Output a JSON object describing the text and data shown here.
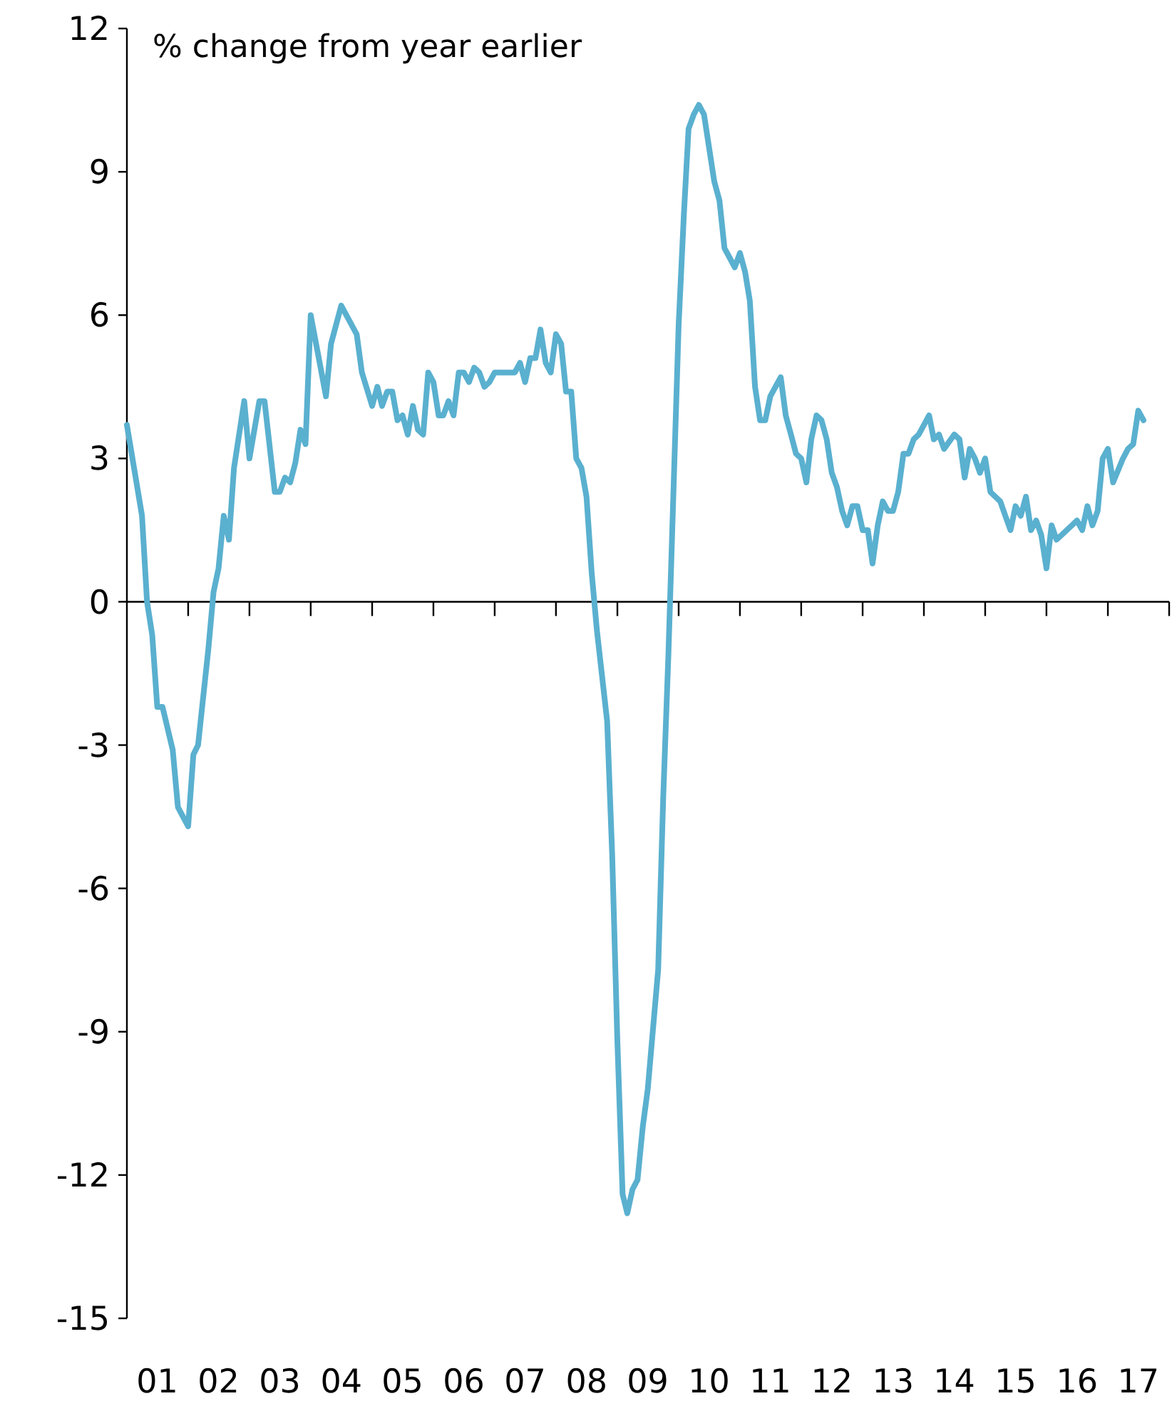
{
  "chart_data": {
    "type": "line",
    "ylabel": "% change from year earlier",
    "color": "#5ab0cf",
    "x": [
      "2001-01",
      "2001-04",
      "2001-05",
      "2001-06",
      "2001-07",
      "2001-08",
      "2001-10",
      "2001-11",
      "2002-01",
      "2002-02",
      "2002-03",
      "2002-05",
      "2002-06",
      "2002-07",
      "2002-08",
      "2002-09",
      "2002-10",
      "2002-12",
      "2003-01",
      "2003-03",
      "2003-04",
      "2003-06",
      "2003-07",
      "2003-08",
      "2003-09",
      "2003-10",
      "2003-11",
      "2003-12",
      "2004-01",
      "2004-04",
      "2004-05",
      "2004-07",
      "2004-10",
      "2004-11",
      "2005-01",
      "2005-02",
      "2005-03",
      "2005-04",
      "2005-05",
      "2005-06",
      "2005-07",
      "2005-08",
      "2005-09",
      "2005-10",
      "2005-11",
      "2005-12",
      "2006-01",
      "2006-02",
      "2006-03",
      "2006-04",
      "2006-05",
      "2006-06",
      "2006-07",
      "2006-08",
      "2006-09",
      "2006-10",
      "2006-11",
      "2006-12",
      "2007-01",
      "2007-03",
      "2007-05",
      "2007-06",
      "2007-07",
      "2007-08",
      "2007-09",
      "2007-10",
      "2007-11",
      "2007-12",
      "2008-01",
      "2008-02",
      "2008-03",
      "2008-04",
      "2008-05",
      "2008-06",
      "2008-07",
      "2008-08",
      "2008-09",
      "2008-11",
      "2008-12",
      "2009-01",
      "2009-02",
      "2009-03",
      "2009-04",
      "2009-05",
      "2009-06",
      "2009-07",
      "2009-09",
      "2009-10",
      "2009-11",
      "2009-12",
      "2010-01",
      "2010-02",
      "2010-03",
      "2010-04",
      "2010-05",
      "2010-06",
      "2010-08",
      "2010-09",
      "2010-10",
      "2010-11",
      "2010-12",
      "2011-01",
      "2011-02",
      "2011-03",
      "2011-04",
      "2011-05",
      "2011-06",
      "2011-07",
      "2011-08",
      "2011-09",
      "2011-10",
      "2011-11",
      "2011-12",
      "2012-01",
      "2012-02",
      "2012-03",
      "2012-04",
      "2012-05",
      "2012-06",
      "2012-07",
      "2012-08",
      "2012-09",
      "2012-10",
      "2012-11",
      "2012-12",
      "2013-01",
      "2013-02",
      "2013-03",
      "2013-04",
      "2013-05",
      "2013-06",
      "2013-07",
      "2013-08",
      "2013-09",
      "2013-10",
      "2013-11",
      "2013-12",
      "2014-01",
      "2014-02",
      "2014-03",
      "2014-04",
      "2014-05",
      "2014-07",
      "2014-08",
      "2014-09",
      "2014-10",
      "2014-11",
      "2014-12",
      "2015-01",
      "2015-02",
      "2015-04",
      "2015-05",
      "2015-06",
      "2015-07",
      "2015-08",
      "2015-09",
      "2015-10",
      "2015-11",
      "2015-12",
      "2016-01",
      "2016-02",
      "2016-03",
      "2016-04",
      "2016-06",
      "2016-07",
      "2016-08",
      "2016-09",
      "2016-10",
      "2016-11",
      "2016-12",
      "2017-01",
      "2017-02",
      "2017-04",
      "2017-05",
      "2017-06",
      "2017-07",
      "2017-08"
    ],
    "values": [
      3.7,
      1.8,
      0.0,
      -0.7,
      -2.2,
      -2.2,
      -3.1,
      -4.3,
      -4.7,
      -3.2,
      -3.0,
      -1.0,
      0.2,
      0.7,
      1.8,
      1.3,
      2.8,
      4.2,
      3.0,
      4.2,
      4.2,
      2.3,
      2.3,
      2.6,
      2.5,
      2.9,
      3.6,
      3.3,
      6.0,
      4.3,
      5.4,
      6.2,
      5.6,
      4.8,
      4.1,
      4.5,
      4.1,
      4.4,
      4.4,
      3.8,
      3.9,
      3.5,
      4.1,
      3.6,
      3.5,
      4.8,
      4.6,
      3.9,
      3.9,
      4.2,
      3.9,
      4.8,
      4.8,
      4.6,
      4.9,
      4.8,
      4.5,
      4.6,
      4.8,
      4.8,
      4.8,
      5.0,
      4.6,
      5.1,
      5.1,
      5.7,
      5.0,
      4.8,
      5.6,
      5.4,
      4.4,
      4.4,
      3.0,
      2.8,
      2.2,
      0.6,
      -0.6,
      -2.5,
      -5.3,
      -9.2,
      -12.4,
      -12.8,
      -12.3,
      -12.1,
      -11.0,
      -10.2,
      -7.7,
      -4.1,
      -1.1,
      2.3,
      5.8,
      8.1,
      9.9,
      10.2,
      10.4,
      10.2,
      8.8,
      8.4,
      7.4,
      7.2,
      7.0,
      7.3,
      6.9,
      6.3,
      4.5,
      3.8,
      3.8,
      4.3,
      4.5,
      4.7,
      3.9,
      3.5,
      3.1,
      3.0,
      2.5,
      3.4,
      3.9,
      3.8,
      3.4,
      2.7,
      2.4,
      1.9,
      1.6,
      2.0,
      2.0,
      1.5,
      1.5,
      0.8,
      1.6,
      2.1,
      1.9,
      1.9,
      2.3,
      3.1,
      3.1,
      3.4,
      3.5,
      3.7,
      3.9,
      3.4,
      3.5,
      3.2,
      3.5,
      3.4,
      2.6,
      3.2,
      3.0,
      2.7,
      3.0,
      2.3,
      2.1,
      1.8,
      1.5,
      2.0,
      1.8,
      2.2,
      1.5,
      1.7,
      1.4,
      0.7,
      1.6,
      1.3,
      1.4,
      1.6,
      1.7,
      1.5,
      2.0,
      1.6,
      1.9,
      3.0,
      3.2,
      2.5,
      3.0,
      3.2,
      3.3,
      4.0,
      3.8
    ],
    "xlim": [
      "2001-01",
      "2018-01"
    ],
    "xticks": [
      {
        "value": "2002-01",
        "label": null
      },
      {
        "value": "2003-01",
        "label": null
      },
      {
        "value": "2004-01",
        "label": null
      },
      {
        "value": "2005-01",
        "label": null
      },
      {
        "value": "2006-01",
        "label": null
      },
      {
        "value": "2007-01",
        "label": null
      },
      {
        "value": "2008-01",
        "label": null
      },
      {
        "value": "2009-01",
        "label": null
      },
      {
        "value": "2010-01",
        "label": null
      },
      {
        "value": "2011-01",
        "label": null
      },
      {
        "value": "2012-01",
        "label": null
      },
      {
        "value": "2013-01",
        "label": null
      },
      {
        "value": "2014-01",
        "label": null
      },
      {
        "value": "2015-01",
        "label": null
      },
      {
        "value": "2016-01",
        "label": null
      },
      {
        "value": "2017-01",
        "label": null
      },
      {
        "value": "2018-01",
        "label": null
      },
      {
        "value": "2001-07",
        "label": "01"
      },
      {
        "value": "2002-07",
        "label": "02"
      },
      {
        "value": "2003-07",
        "label": "03"
      },
      {
        "value": "2004-07",
        "label": "04"
      },
      {
        "value": "2005-07",
        "label": "05"
      },
      {
        "value": "2006-07",
        "label": "06"
      },
      {
        "value": "2007-07",
        "label": "07"
      },
      {
        "value": "2008-07",
        "label": "08"
      },
      {
        "value": "2009-07",
        "label": "09"
      },
      {
        "value": "2010-07",
        "label": "10"
      },
      {
        "value": "2011-07",
        "label": "11"
      },
      {
        "value": "2012-07",
        "label": "12"
      },
      {
        "value": "2013-07",
        "label": "13"
      },
      {
        "value": "2014-07",
        "label": "14"
      },
      {
        "value": "2015-07",
        "label": "15"
      },
      {
        "value": "2016-07",
        "label": "16"
      },
      {
        "value": "2017-07",
        "label": "17"
      }
    ],
    "ylim": [
      -15,
      12
    ],
    "yticks": [
      -15,
      -12,
      -9,
      -6,
      -3,
      0,
      3,
      6,
      9,
      12
    ]
  }
}
